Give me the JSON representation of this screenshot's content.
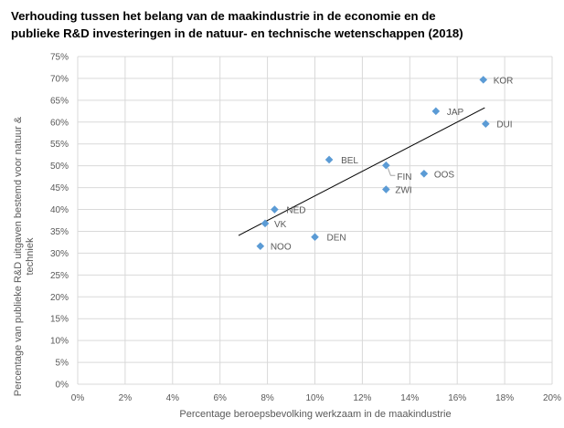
{
  "chart_data": {
    "type": "scatter",
    "title_line1": "Verhouding tussen het belang van de maakindustrie in de economie en de",
    "title_line2": "publieke R&D investeringen in de natuur- en technische wetenschappen (2018)",
    "xlabel": "Percentage beroepsbevolking werkzaam in de maakindustrie",
    "ylabel": "Percentage van publieke R&D uitgaven bestemd voor natuur & techniek",
    "xlim": [
      0,
      0.2
    ],
    "ylim": [
      0,
      0.75
    ],
    "x_ticks": [
      0,
      0.02,
      0.04,
      0.06,
      0.08,
      0.1,
      0.12,
      0.14,
      0.16,
      0.18,
      0.2
    ],
    "x_tick_labels": [
      "0%",
      "2%",
      "4%",
      "6%",
      "8%",
      "10%",
      "12%",
      "14%",
      "16%",
      "18%",
      "20%"
    ],
    "y_ticks": [
      0,
      0.05,
      0.1,
      0.15,
      0.2,
      0.25,
      0.3,
      0.35,
      0.4,
      0.45,
      0.5,
      0.55,
      0.6,
      0.65,
      0.7,
      0.75
    ],
    "y_tick_labels": [
      "0%",
      "5%",
      "10%",
      "15%",
      "20%",
      "25%",
      "30%",
      "35%",
      "40%",
      "45%",
      "50%",
      "55%",
      "60%",
      "65%",
      "70%",
      "75%"
    ],
    "grid": true,
    "marker_color": "#5B9BD5",
    "trendline": {
      "x": [
        0.0678,
        0.1716
      ],
      "y": [
        0.3405,
        0.6328
      ]
    },
    "points": [
      {
        "label": "KOR",
        "x": 0.171,
        "y": 0.697
      },
      {
        "label": "JAP",
        "x": 0.151,
        "y": 0.625
      },
      {
        "label": "DUI",
        "x": 0.172,
        "y": 0.596
      },
      {
        "label": "BEL",
        "x": 0.106,
        "y": 0.514
      },
      {
        "label": "FIN",
        "x": 0.13,
        "y": 0.501
      },
      {
        "label": "OOS",
        "x": 0.146,
        "y": 0.482
      },
      {
        "label": "ZWI",
        "x": 0.13,
        "y": 0.446
      },
      {
        "label": "NED",
        "x": 0.083,
        "y": 0.4
      },
      {
        "label": "VK",
        "x": 0.079,
        "y": 0.368
      },
      {
        "label": "DEN",
        "x": 0.1,
        "y": 0.337
      },
      {
        "label": "NOO",
        "x": 0.077,
        "y": 0.316
      }
    ]
  }
}
